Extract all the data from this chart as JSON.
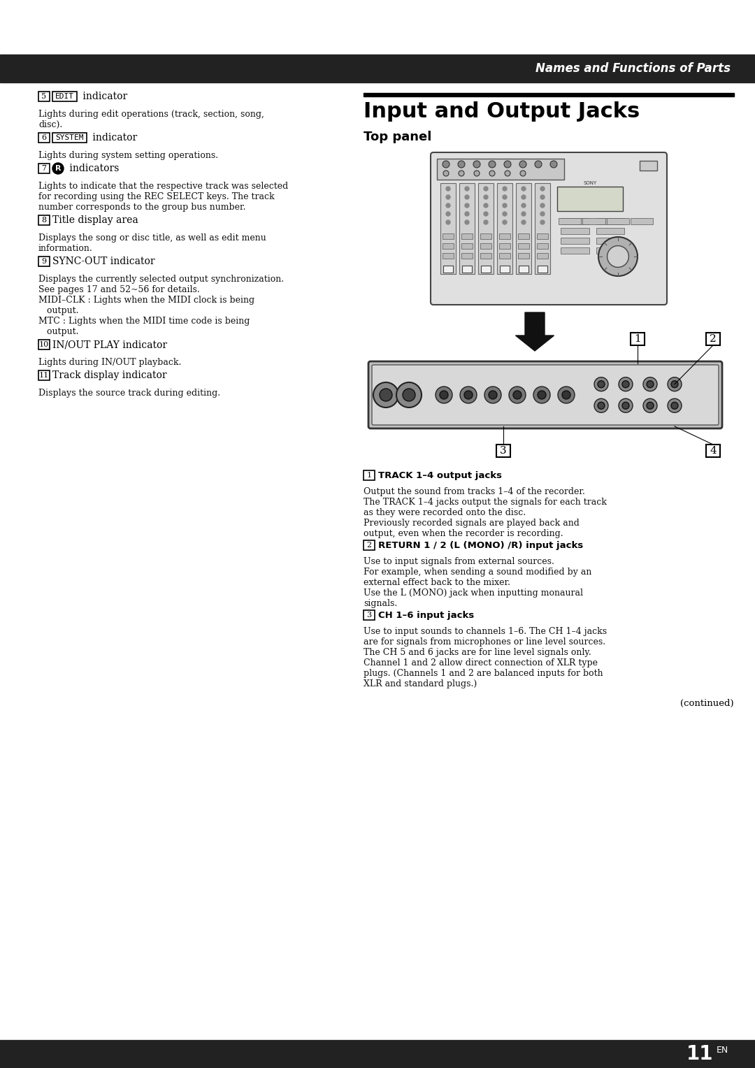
{
  "page_bg": "#ffffff",
  "header_bg": "#222222",
  "header_text": "Names and Functions of Parts",
  "header_text_color": "#ffffff",
  "title": "Input and Output Jacks",
  "subtitle": "Top panel",
  "footer_text": "11",
  "footer_superscript": "EN",
  "continued_text": "(continued)",
  "left_column": [
    {
      "number": "5",
      "label": "EDIT",
      "label_boxed": true,
      "heading": " indicator",
      "body": "Lights during edit operations (track, section, song,\ndisc)."
    },
    {
      "number": "6",
      "label": "SYSTEM",
      "label_boxed": true,
      "heading": " indicator",
      "body": "Lights during system setting operations."
    },
    {
      "number": "7",
      "label": "R",
      "label_filled": true,
      "label_boxed": false,
      "heading": " indicators",
      "body": "Lights to indicate that the respective track was selected\nfor recording using the REC SELECT keys. The track\nnumber corresponds to the group bus number."
    },
    {
      "number": "8",
      "label": "",
      "label_boxed": false,
      "heading": "Title display area",
      "body": "Displays the song or disc title, as well as edit menu\ninformation."
    },
    {
      "number": "9",
      "label": "",
      "label_boxed": false,
      "heading": "SYNC-OUT indicator",
      "body": "Displays the currently selected output synchronization.\nSee pages 17 and 52~56 for details.\nMIDI–CLK : Lights when the MIDI clock is being\n   output.\nMTC : Lights when the MIDI time code is being\n   output."
    },
    {
      "number": "10",
      "label": "",
      "label_boxed": false,
      "heading": "IN/OUT PLAY indicator",
      "body": "Lights during IN/OUT playback."
    },
    {
      "number": "11",
      "label": "",
      "label_boxed": false,
      "heading": "Track display indicator",
      "body": "Displays the source track during editing."
    }
  ],
  "right_descriptions": [
    {
      "number": "1",
      "heading": "TRACK 1–4 output jacks",
      "body": "Output the sound from tracks 1–4 of the recorder.\nThe TRACK 1–4 jacks output the signals for each track\nas they were recorded onto the disc.\nPreviously recorded signals are played back and\noutput, even when the recorder is recording."
    },
    {
      "number": "2",
      "heading": "RETURN 1 / 2 (L (MONO) /R) input jacks",
      "body": "Use to input signals from external sources.\nFor example, when sending a sound modified by an\nexternal effect back to the mixer.\nUse the L (MONO) jack when inputting monaural\nsignals."
    },
    {
      "number": "3",
      "heading": "CH 1–6 input jacks",
      "body": "Use to input sounds to channels 1–6. The CH 1–4 jacks\nare for signals from microphones or line level sources.\nThe CH 5 and 6 jacks are for line level signals only.\nChannel 1 and 2 allow direct connection of XLR type\nplugs. (Channels 1 and 2 are balanced inputs for both\nXLR and standard plugs.)"
    }
  ]
}
